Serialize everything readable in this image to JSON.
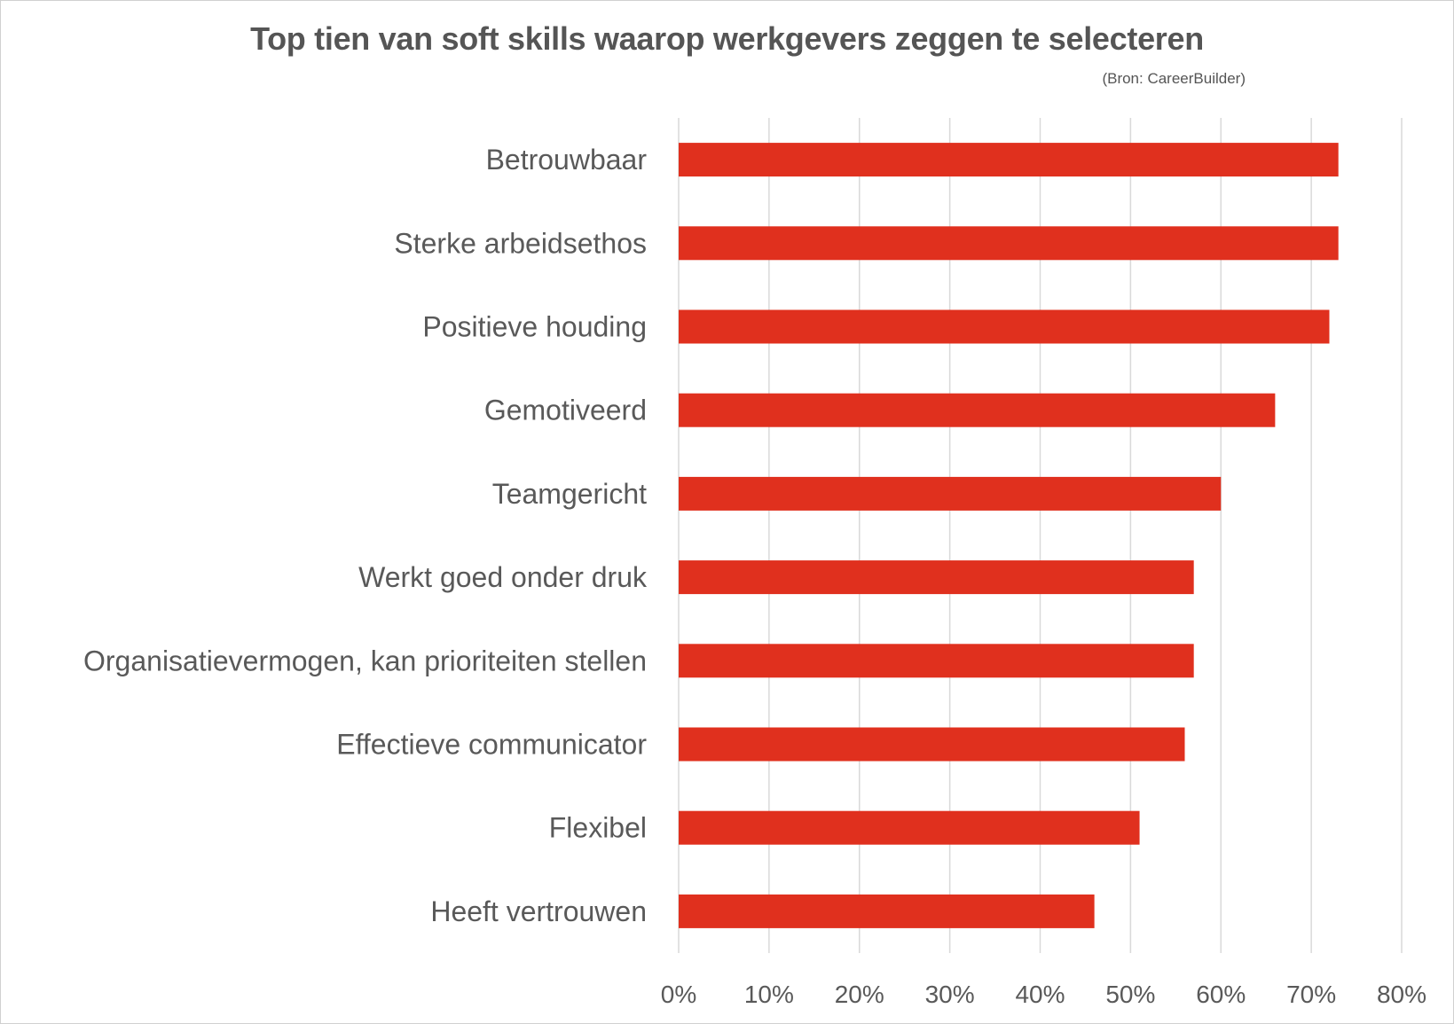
{
  "chart_data": {
    "type": "bar",
    "orientation": "horizontal",
    "title": "Top tien van soft skills waarop werkgevers zeggen te selecteren",
    "subtitle": "(Bron: CareerBuilder)",
    "categories": [
      "Betrouwbaar",
      "Sterke arbeidsethos",
      "Positieve houding",
      "Gemotiveerd",
      "Teamgericht",
      "Werkt goed onder druk",
      "Organisatievermogen, kan prioriteiten stellen",
      "Effectieve communicator",
      "Flexibel",
      "Heeft vertrouwen"
    ],
    "values": [
      73,
      73,
      72,
      66,
      60,
      57,
      57,
      56,
      51,
      46
    ],
    "xlim": [
      0,
      80
    ],
    "xticks": [
      0,
      10,
      20,
      30,
      40,
      50,
      60,
      70,
      80
    ],
    "xtick_labels": [
      "0%",
      "10%",
      "20%",
      "30%",
      "40%",
      "50%",
      "60%",
      "70%",
      "80%"
    ],
    "xlabel": "",
    "ylabel": "",
    "grid": "vertical",
    "legend": "none",
    "bar_color": "#e0301e",
    "grid_color": "#d9d9d9",
    "text_color": "#595959"
  }
}
